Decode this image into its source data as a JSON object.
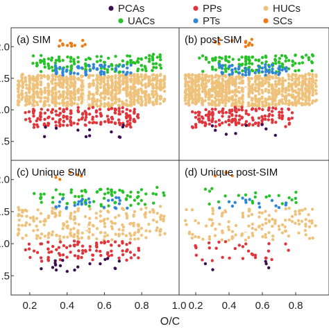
{
  "chart_data": {
    "type": "scatter",
    "xlabel": "O/C",
    "xlim": [
      0.1,
      1.0
    ],
    "ylim": [
      0.2,
      2.3
    ],
    "xticks": [
      {
        "v": 0.2,
        "label": "0.2"
      },
      {
        "v": 0.4,
        "label": "0.4"
      },
      {
        "v": 0.6,
        "label": "0.6"
      },
      {
        "v": 0.8,
        "label": "0.8"
      },
      {
        "v": 1.0,
        "label": "1.0"
      }
    ],
    "xticks_right": [
      {
        "v": 0.2,
        "label": "0.2"
      },
      {
        "v": 0.4,
        "label": "0.4"
      },
      {
        "v": 0.6,
        "label": "0.6"
      },
      {
        "v": 0.8,
        "label": "0.8"
      }
    ],
    "yticks": [
      {
        "v": 2.0,
        "label": "2.0"
      },
      {
        "v": 1.5,
        "label": "1.5"
      },
      {
        "v": 1.0,
        "label": "1.0"
      },
      {
        "v": 0.5,
        "label": ".5"
      }
    ],
    "legend": {
      "position": "top",
      "entries": [
        {
          "name": "PCAs",
          "color": "#3b0f4f"
        },
        {
          "name": "PPs",
          "color": "#e0353b"
        },
        {
          "name": "HUCs",
          "color": "#efc27c"
        },
        {
          "name": "UACs",
          "color": "#27c227"
        },
        {
          "name": "PTs",
          "color": "#2f86d6"
        },
        {
          "name": "SCs",
          "color": "#ef7a12"
        }
      ]
    },
    "panels": [
      {
        "label": "(a) SIM",
        "density": 1.0,
        "regions": {
          "SCs": 12,
          "UACs": 130,
          "PTs": 60,
          "HUCs": 950,
          "PPs": 170,
          "PCAs": 12
        }
      },
      {
        "label": "(b) post-SIM",
        "density": 1.0,
        "regions": {
          "SCs": 12,
          "UACs": 125,
          "PTs": 60,
          "HUCs": 900,
          "PPs": 160,
          "PCAs": 8
        }
      },
      {
        "label": "(c) Unique SIM",
        "density": 0.5,
        "regions": {
          "SCs": 5,
          "UACs": 70,
          "PTs": 25,
          "HUCs": 220,
          "PPs": 90,
          "PCAs": 18
        }
      },
      {
        "label": "(d) Unique post-SIM",
        "density": 0.3,
        "regions": {
          "SCs": 4,
          "UACs": 20,
          "PTs": 14,
          "HUCs": 130,
          "PPs": 30,
          "PCAs": 5
        }
      }
    ]
  }
}
